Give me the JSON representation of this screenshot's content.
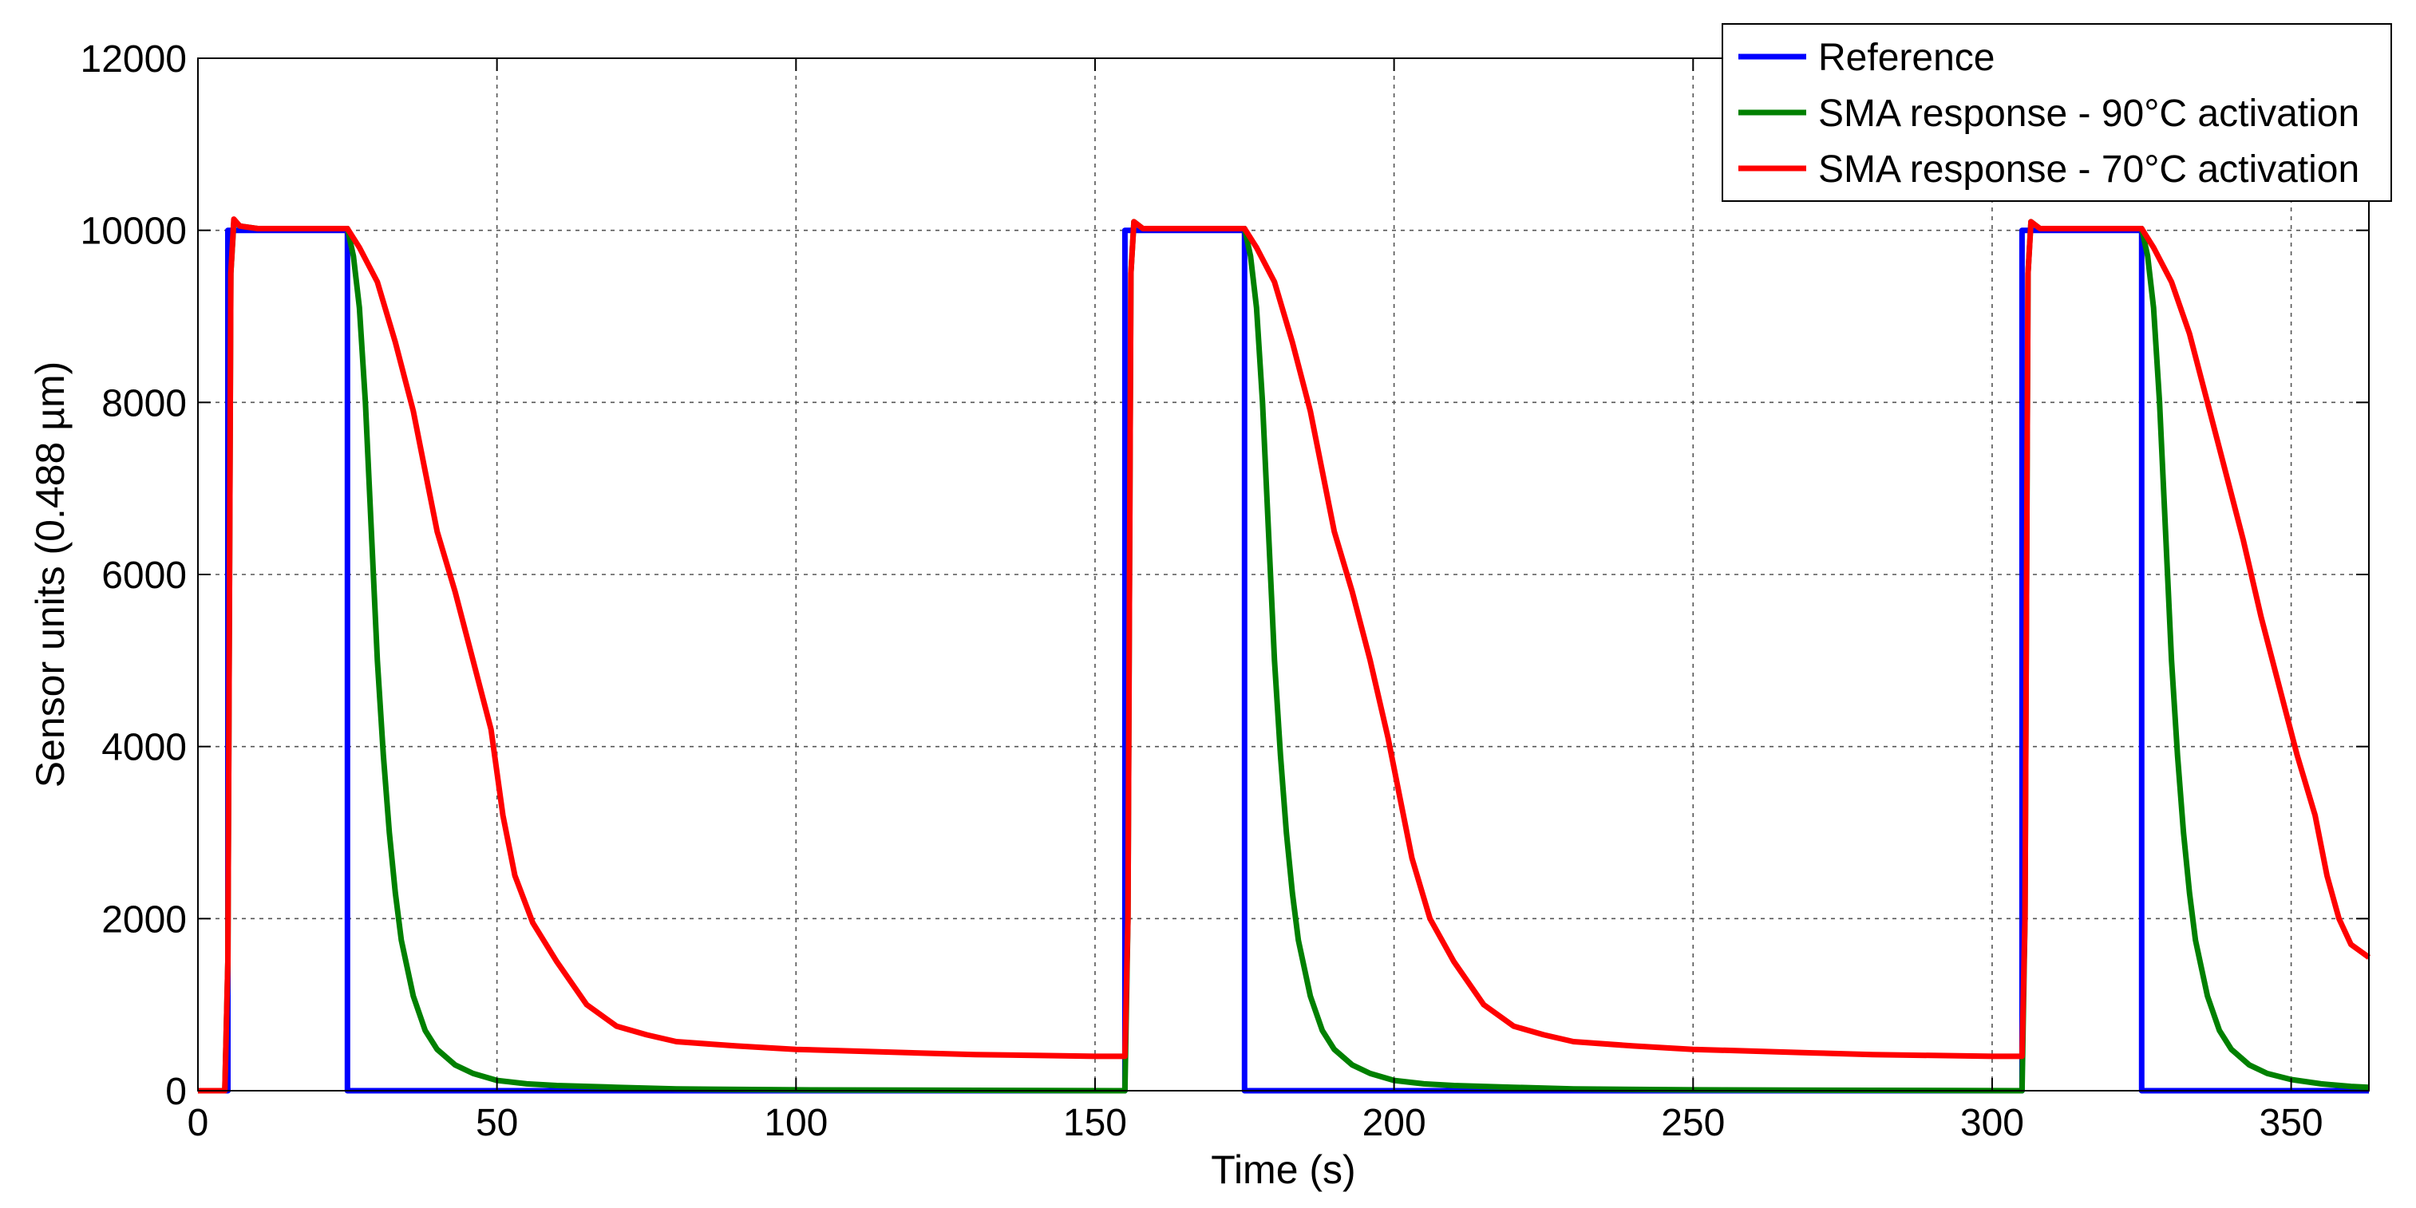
{
  "chart_data": {
    "type": "line",
    "title": "",
    "xlabel": "Time (s)",
    "ylabel": "Sensor units (0.488 µm)",
    "xlim": [
      0,
      363
    ],
    "ylim": [
      0,
      12000
    ],
    "x_ticks": [
      0,
      50,
      100,
      150,
      200,
      250,
      300,
      350
    ],
    "y_ticks": [
      0,
      2000,
      4000,
      6000,
      8000,
      10000,
      12000
    ],
    "grid": true,
    "legend_position": "top-right",
    "series": [
      {
        "name": "Reference",
        "color": "#0000ff",
        "points": [
          [
            0,
            0
          ],
          [
            5,
            0
          ],
          [
            5,
            10000
          ],
          [
            25,
            10000
          ],
          [
            25,
            0
          ],
          [
            155,
            0
          ],
          [
            155,
            10000
          ],
          [
            175,
            10000
          ],
          [
            175,
            0
          ],
          [
            305,
            0
          ],
          [
            305,
            10000
          ],
          [
            325,
            10000
          ],
          [
            325,
            0
          ],
          [
            363,
            0
          ]
        ]
      },
      {
        "name": "SMA response - 90°C activation",
        "color": "#008000",
        "points": [
          [
            0,
            0
          ],
          [
            4.5,
            0
          ],
          [
            5,
            1500
          ],
          [
            5.5,
            9500
          ],
          [
            6,
            10100
          ],
          [
            7,
            10050
          ],
          [
            10,
            10020
          ],
          [
            20,
            10020
          ],
          [
            25,
            10020
          ],
          [
            26,
            9700
          ],
          [
            27,
            9100
          ],
          [
            28,
            8000
          ],
          [
            29,
            6500
          ],
          [
            30,
            5000
          ],
          [
            31,
            3900
          ],
          [
            32,
            3000
          ],
          [
            33,
            2300
          ],
          [
            34,
            1750
          ],
          [
            36,
            1100
          ],
          [
            38,
            700
          ],
          [
            40,
            480
          ],
          [
            43,
            300
          ],
          [
            46,
            200
          ],
          [
            50,
            120
          ],
          [
            55,
            80
          ],
          [
            60,
            60
          ],
          [
            70,
            40
          ],
          [
            80,
            20
          ],
          [
            100,
            10
          ],
          [
            130,
            5
          ],
          [
            155,
            0
          ],
          [
            155.5,
            2000
          ],
          [
            156,
            9500
          ],
          [
            156.5,
            10100
          ],
          [
            158,
            10020
          ],
          [
            175,
            10020
          ],
          [
            176,
            9700
          ],
          [
            177,
            9100
          ],
          [
            178,
            8000
          ],
          [
            179,
            6500
          ],
          [
            180,
            5000
          ],
          [
            181,
            3900
          ],
          [
            182,
            3000
          ],
          [
            183,
            2300
          ],
          [
            184,
            1750
          ],
          [
            186,
            1100
          ],
          [
            188,
            700
          ],
          [
            190,
            480
          ],
          [
            193,
            300
          ],
          [
            196,
            200
          ],
          [
            200,
            120
          ],
          [
            205,
            80
          ],
          [
            210,
            60
          ],
          [
            220,
            40
          ],
          [
            230,
            20
          ],
          [
            250,
            10
          ],
          [
            280,
            5
          ],
          [
            305,
            0
          ],
          [
            305.5,
            2000
          ],
          [
            306,
            9500
          ],
          [
            306.5,
            10100
          ],
          [
            308,
            10020
          ],
          [
            325,
            10020
          ],
          [
            326,
            9700
          ],
          [
            327,
            9100
          ],
          [
            328,
            8000
          ],
          [
            329,
            6500
          ],
          [
            330,
            5000
          ],
          [
            331,
            3900
          ],
          [
            332,
            3000
          ],
          [
            333,
            2300
          ],
          [
            334,
            1750
          ],
          [
            336,
            1100
          ],
          [
            338,
            700
          ],
          [
            340,
            480
          ],
          [
            343,
            300
          ],
          [
            346,
            200
          ],
          [
            350,
            130
          ],
          [
            355,
            80
          ],
          [
            360,
            50
          ],
          [
            363,
            40
          ]
        ]
      },
      {
        "name": "SMA response - 70°C activation",
        "color": "#ff0000",
        "points": [
          [
            0,
            0
          ],
          [
            4.5,
            0
          ],
          [
            5,
            1500
          ],
          [
            5.5,
            9500
          ],
          [
            6,
            10130
          ],
          [
            7,
            10050
          ],
          [
            10,
            10020
          ],
          [
            20,
            10020
          ],
          [
            25,
            10020
          ],
          [
            27,
            9800
          ],
          [
            30,
            9400
          ],
          [
            33,
            8700
          ],
          [
            36,
            7900
          ],
          [
            38,
            7200
          ],
          [
            40,
            6500
          ],
          [
            43,
            5800
          ],
          [
            46,
            5000
          ],
          [
            49,
            4200
          ],
          [
            51,
            3200
          ],
          [
            53,
            2500
          ],
          [
            56,
            1950
          ],
          [
            60,
            1500
          ],
          [
            65,
            1000
          ],
          [
            70,
            750
          ],
          [
            75,
            650
          ],
          [
            80,
            570
          ],
          [
            90,
            520
          ],
          [
            100,
            480
          ],
          [
            110,
            460
          ],
          [
            120,
            440
          ],
          [
            130,
            420
          ],
          [
            140,
            410
          ],
          [
            150,
            400
          ],
          [
            155,
            400
          ],
          [
            155.5,
            2000
          ],
          [
            156,
            9500
          ],
          [
            156.5,
            10100
          ],
          [
            158,
            10020
          ],
          [
            175,
            10020
          ],
          [
            177,
            9800
          ],
          [
            180,
            9400
          ],
          [
            183,
            8700
          ],
          [
            186,
            7900
          ],
          [
            188,
            7200
          ],
          [
            190,
            6500
          ],
          [
            193,
            5800
          ],
          [
            196,
            5000
          ],
          [
            199,
            4100
          ],
          [
            201,
            3400
          ],
          [
            203,
            2700
          ],
          [
            206,
            2000
          ],
          [
            210,
            1500
          ],
          [
            215,
            1000
          ],
          [
            220,
            750
          ],
          [
            225,
            650
          ],
          [
            230,
            570
          ],
          [
            240,
            520
          ],
          [
            250,
            480
          ],
          [
            260,
            460
          ],
          [
            270,
            440
          ],
          [
            280,
            420
          ],
          [
            290,
            410
          ],
          [
            300,
            400
          ],
          [
            305,
            400
          ],
          [
            305.5,
            2000
          ],
          [
            306,
            9500
          ],
          [
            306.5,
            10100
          ],
          [
            308,
            10020
          ],
          [
            325,
            10020
          ],
          [
            327,
            9800
          ],
          [
            330,
            9400
          ],
          [
            333,
            8800
          ],
          [
            336,
            8000
          ],
          [
            339,
            7200
          ],
          [
            342,
            6400
          ],
          [
            345,
            5500
          ],
          [
            348,
            4700
          ],
          [
            351,
            3900
          ],
          [
            354,
            3200
          ],
          [
            356,
            2500
          ],
          [
            358,
            2000
          ],
          [
            360,
            1700
          ],
          [
            363,
            1550
          ]
        ]
      }
    ]
  }
}
